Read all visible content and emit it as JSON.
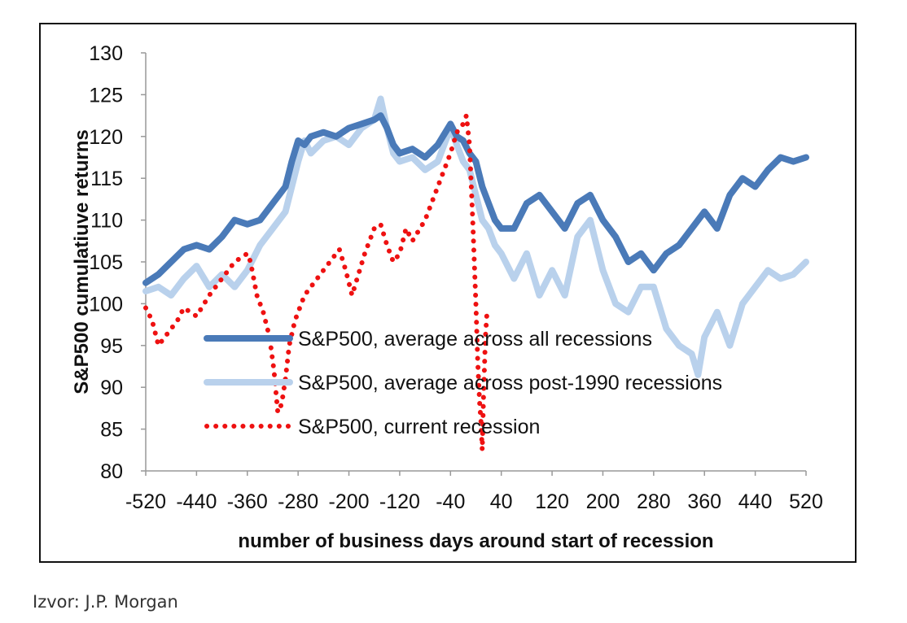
{
  "colors": {
    "all_recessions": "#4a7ab8",
    "post1990": "#b9d1ec",
    "current": "#ee1111",
    "axis": "#999999"
  },
  "chart_data": {
    "type": "line",
    "xlabel": "number of business days around start of recession",
    "ylabel": "S&P500 cumulatiuve returns",
    "xlim": [
      -520,
      520
    ],
    "ylim": [
      80,
      130
    ],
    "x_ticks": [
      -520,
      -440,
      -360,
      -280,
      -200,
      -120,
      -40,
      40,
      120,
      200,
      280,
      360,
      440,
      520
    ],
    "y_ticks": [
      80,
      85,
      90,
      95,
      100,
      105,
      110,
      115,
      120,
      125,
      130
    ],
    "grid": false,
    "legend_position": "center-left",
    "series": [
      {
        "name": "S&P500, average across all recessions",
        "style": "solid",
        "color": "#4a7ab8",
        "points": [
          [
            -520,
            102.5
          ],
          [
            -500,
            103.5
          ],
          [
            -480,
            105
          ],
          [
            -460,
            106.5
          ],
          [
            -440,
            107
          ],
          [
            -420,
            106.5
          ],
          [
            -400,
            108
          ],
          [
            -380,
            110
          ],
          [
            -360,
            109.5
          ],
          [
            -340,
            110
          ],
          [
            -320,
            112
          ],
          [
            -300,
            114
          ],
          [
            -290,
            117
          ],
          [
            -280,
            119.5
          ],
          [
            -270,
            119
          ],
          [
            -260,
            120
          ],
          [
            -240,
            120.5
          ],
          [
            -220,
            120
          ],
          [
            -200,
            121
          ],
          [
            -180,
            121.5
          ],
          [
            -160,
            122
          ],
          [
            -150,
            122.5
          ],
          [
            -140,
            121
          ],
          [
            -130,
            119
          ],
          [
            -120,
            118
          ],
          [
            -100,
            118.5
          ],
          [
            -80,
            117.5
          ],
          [
            -60,
            119
          ],
          [
            -40,
            121.5
          ],
          [
            -30,
            120
          ],
          [
            -20,
            119.5
          ],
          [
            -10,
            118
          ],
          [
            0,
            117
          ],
          [
            10,
            114
          ],
          [
            20,
            112
          ],
          [
            30,
            110
          ],
          [
            40,
            109
          ],
          [
            60,
            109
          ],
          [
            80,
            112
          ],
          [
            100,
            113
          ],
          [
            120,
            111
          ],
          [
            140,
            109
          ],
          [
            160,
            112
          ],
          [
            180,
            113
          ],
          [
            200,
            110
          ],
          [
            220,
            108
          ],
          [
            240,
            105
          ],
          [
            260,
            106
          ],
          [
            280,
            104
          ],
          [
            300,
            106
          ],
          [
            320,
            107
          ],
          [
            340,
            109
          ],
          [
            360,
            111
          ],
          [
            380,
            109
          ],
          [
            400,
            113
          ],
          [
            420,
            115
          ],
          [
            440,
            114
          ],
          [
            460,
            116
          ],
          [
            480,
            117.5
          ],
          [
            500,
            117
          ],
          [
            520,
            117.5
          ]
        ]
      },
      {
        "name": "S&P500, average across post-1990 recessions",
        "style": "solid",
        "color": "#b9d1ec",
        "points": [
          [
            -520,
            101.5
          ],
          [
            -500,
            102
          ],
          [
            -480,
            101
          ],
          [
            -460,
            103
          ],
          [
            -440,
            104.5
          ],
          [
            -420,
            102
          ],
          [
            -400,
            103.5
          ],
          [
            -380,
            102
          ],
          [
            -360,
            104
          ],
          [
            -340,
            107
          ],
          [
            -320,
            109
          ],
          [
            -300,
            111
          ],
          [
            -290,
            114
          ],
          [
            -280,
            117
          ],
          [
            -270,
            119.5
          ],
          [
            -260,
            118
          ],
          [
            -240,
            119.5
          ],
          [
            -220,
            120
          ],
          [
            -200,
            119
          ],
          [
            -180,
            121
          ],
          [
            -160,
            122
          ],
          [
            -150,
            124.5
          ],
          [
            -140,
            121
          ],
          [
            -130,
            118
          ],
          [
            -120,
            117
          ],
          [
            -100,
            117.5
          ],
          [
            -80,
            116
          ],
          [
            -60,
            117
          ],
          [
            -40,
            121
          ],
          [
            -30,
            119
          ],
          [
            -20,
            117
          ],
          [
            -10,
            116
          ],
          [
            0,
            113
          ],
          [
            10,
            110
          ],
          [
            20,
            109
          ],
          [
            30,
            107
          ],
          [
            40,
            106
          ],
          [
            60,
            103
          ],
          [
            80,
            106
          ],
          [
            100,
            101
          ],
          [
            120,
            104
          ],
          [
            140,
            101
          ],
          [
            160,
            108
          ],
          [
            180,
            110
          ],
          [
            200,
            104
          ],
          [
            220,
            100
          ],
          [
            240,
            99
          ],
          [
            260,
            102
          ],
          [
            280,
            102
          ],
          [
            300,
            97
          ],
          [
            320,
            95
          ],
          [
            340,
            94
          ],
          [
            350,
            91.5
          ],
          [
            360,
            96
          ],
          [
            380,
            99
          ],
          [
            400,
            95
          ],
          [
            420,
            100
          ],
          [
            440,
            102
          ],
          [
            460,
            104
          ],
          [
            480,
            103
          ],
          [
            500,
            103.5
          ],
          [
            520,
            105
          ]
        ]
      },
      {
        "name": "S&P500, current recession",
        "style": "dotted",
        "color": "#ee1111",
        "points": [
          [
            -520,
            99.5
          ],
          [
            -510,
            98
          ],
          [
            -500,
            95
          ],
          [
            -490,
            96
          ],
          [
            -480,
            97
          ],
          [
            -470,
            98
          ],
          [
            -460,
            99.5
          ],
          [
            -440,
            98.5
          ],
          [
            -420,
            101
          ],
          [
            -400,
            103
          ],
          [
            -380,
            105
          ],
          [
            -360,
            106
          ],
          [
            -355,
            105
          ],
          [
            -345,
            101
          ],
          [
            -335,
            99
          ],
          [
            -325,
            96
          ],
          [
            -318,
            92
          ],
          [
            -312,
            87
          ],
          [
            -306,
            88
          ],
          [
            -300,
            91
          ],
          [
            -294,
            95
          ],
          [
            -285,
            98
          ],
          [
            -270,
            101
          ],
          [
            -250,
            103
          ],
          [
            -230,
            105
          ],
          [
            -215,
            106.5
          ],
          [
            -205,
            104
          ],
          [
            -195,
            101
          ],
          [
            -185,
            103.5
          ],
          [
            -175,
            106
          ],
          [
            -160,
            109
          ],
          [
            -150,
            109.5
          ],
          [
            -140,
            107
          ],
          [
            -130,
            105
          ],
          [
            -120,
            106
          ],
          [
            -110,
            109
          ],
          [
            -100,
            107.5
          ],
          [
            -80,
            110
          ],
          [
            -60,
            114
          ],
          [
            -40,
            118
          ],
          [
            -30,
            120.5
          ],
          [
            -20,
            121.5
          ],
          [
            -15,
            122.5
          ],
          [
            -10,
            119
          ],
          [
            -5,
            110
          ],
          [
            0,
            100
          ],
          [
            3,
            93
          ],
          [
            6,
            88
          ],
          [
            8,
            86
          ],
          [
            10,
            82.5
          ],
          [
            12,
            89
          ],
          [
            15,
            96
          ],
          [
            18,
            99.5
          ]
        ]
      }
    ]
  },
  "source": "Izvor: J.P. Morgan"
}
